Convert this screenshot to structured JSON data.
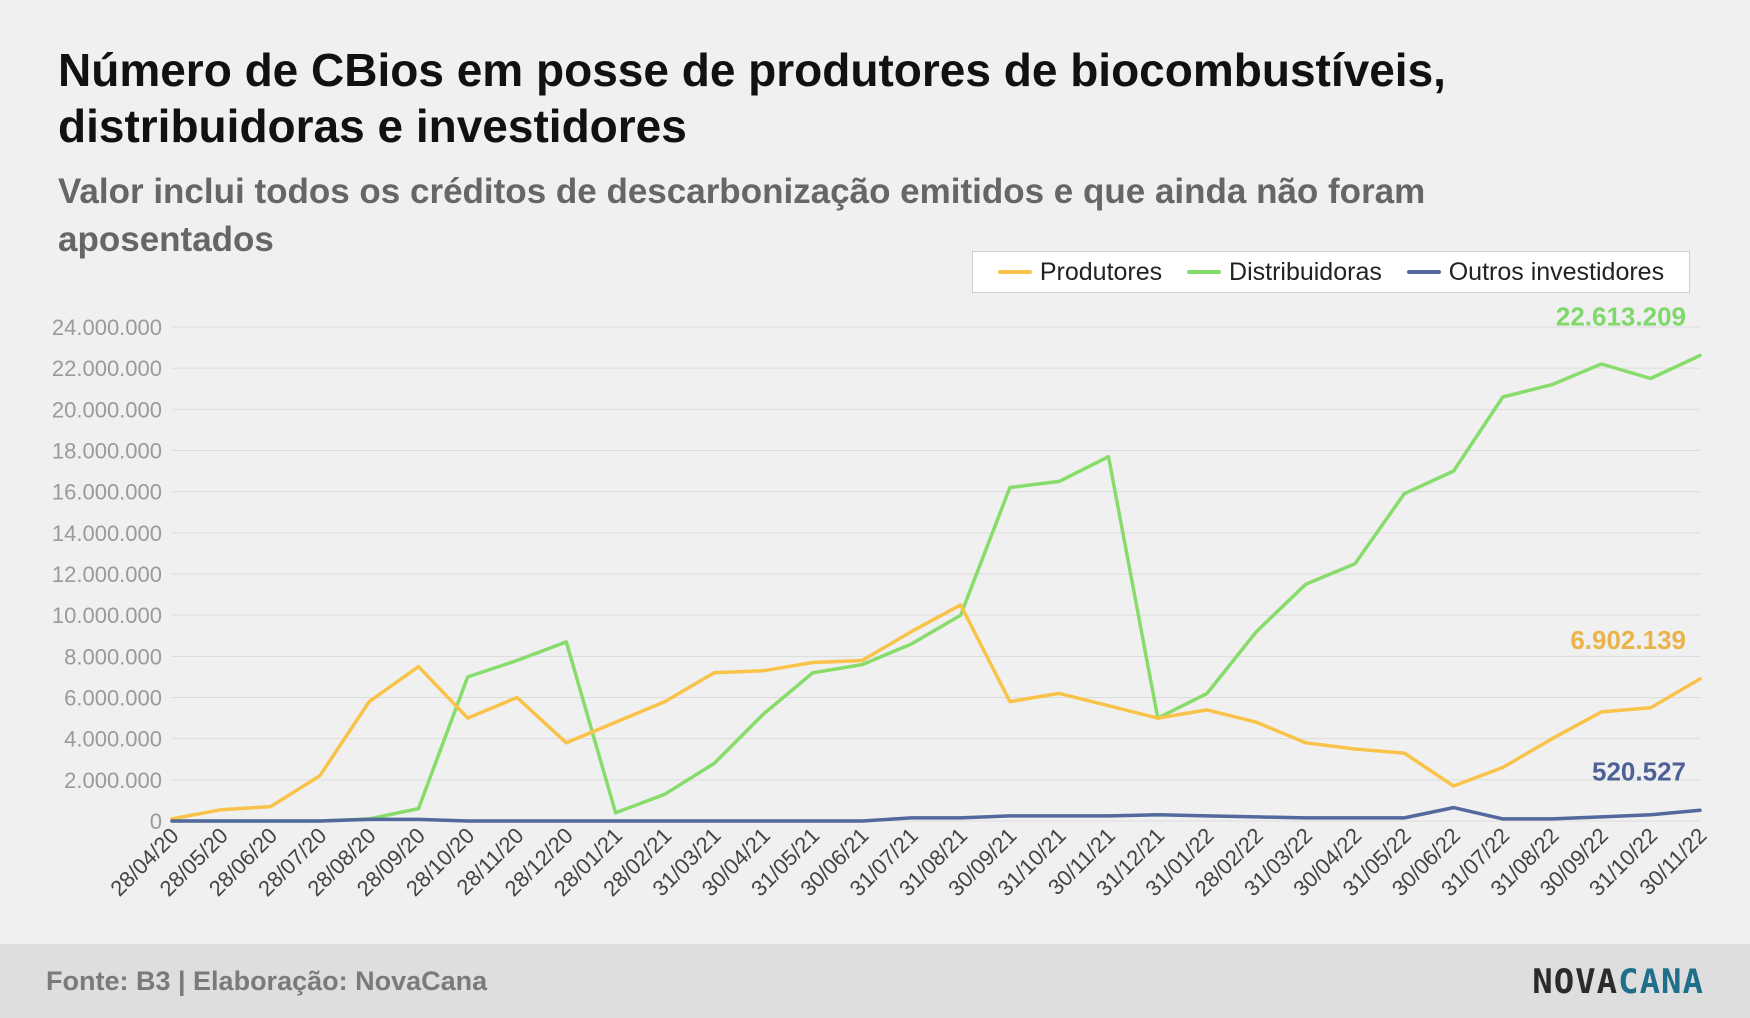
{
  "title": "Número de CBios em posse de produtores de biocombustíveis, distribuidoras e investidores",
  "subtitle": "Valor inclui todos os créditos de descarbonização emitidos e que ainda não foram aposentados",
  "footer": {
    "source": "Fonte: B3 | Elaboração: NovaCana",
    "logo_part1": "NOVA",
    "logo_part2": "CANA"
  },
  "colors": {
    "produtores": "#f9c349",
    "distribuidoras": "#87dc6c",
    "outros": "#53689c",
    "produtores_label": "#eab44b",
    "distribuidoras_label": "#7fd86a",
    "outros_label": "#4e6196",
    "grid": "#dcdcdc",
    "axis_text": "#9a9a9a",
    "xtick_text": "#444444"
  },
  "chart_data": {
    "type": "line",
    "title": "Número de CBios em posse de produtores de biocombustíveis, distribuidoras e investidores",
    "legend_position": "top-right",
    "grid": true,
    "ylim": [
      0,
      24000000
    ],
    "yticks": [
      0,
      2000000,
      4000000,
      6000000,
      8000000,
      10000000,
      12000000,
      14000000,
      16000000,
      18000000,
      20000000,
      22000000,
      24000000
    ],
    "ytick_labels": [
      "0",
      "2.000.000",
      "4.000.000",
      "6.000.000",
      "8.000.000",
      "10.000.000",
      "12.000.000",
      "14.000.000",
      "16.000.000",
      "18.000.000",
      "20.000.000",
      "22.000.000",
      "24.000.000"
    ],
    "x": [
      "28/04/20",
      "28/05/20",
      "28/06/20",
      "28/07/20",
      "28/08/20",
      "28/09/20",
      "28/10/20",
      "28/11/20",
      "28/12/20",
      "28/01/21",
      "28/02/21",
      "31/03/21",
      "30/04/21",
      "31/05/21",
      "30/06/21",
      "31/07/21",
      "31/08/21",
      "30/09/21",
      "31/10/21",
      "30/11/21",
      "31/12/21",
      "31/01/22",
      "28/02/22",
      "31/03/22",
      "30/04/22",
      "31/05/22",
      "30/06/22",
      "31/07/22",
      "31/08/22",
      "30/09/22",
      "31/10/22",
      "30/11/22"
    ],
    "series": [
      {
        "name": "Produtores",
        "color_key": "produtores",
        "values": [
          100000,
          550000,
          700000,
          2200000,
          5800000,
          7500000,
          5000000,
          6000000,
          3800000,
          4800000,
          5800000,
          7200000,
          7300000,
          7700000,
          7800000,
          9200000,
          10500000,
          5800000,
          6200000,
          5600000,
          5000000,
          5400000,
          4800000,
          3800000,
          3500000,
          3300000,
          1700000,
          2600000,
          4000000,
          5300000,
          5500000,
          6902139
        ],
        "end_label": "6.902.139"
      },
      {
        "name": "Distribuidoras",
        "color_key": "distribuidoras",
        "values": [
          0,
          0,
          0,
          0,
          100000,
          600000,
          7000000,
          7800000,
          8700000,
          400000,
          1300000,
          2800000,
          5200000,
          7200000,
          7600000,
          8600000,
          10000000,
          16200000,
          16500000,
          17700000,
          5000000,
          6200000,
          9200000,
          11500000,
          12500000,
          15900000,
          17000000,
          20600000,
          21200000,
          22200000,
          21500000,
          22613209
        ],
        "end_label": "22.613.209"
      },
      {
        "name": "Outros investidores",
        "color_key": "outros",
        "values": [
          0,
          0,
          0,
          0,
          80000,
          80000,
          0,
          0,
          0,
          0,
          0,
          0,
          0,
          0,
          0,
          150000,
          150000,
          250000,
          250000,
          250000,
          300000,
          250000,
          200000,
          150000,
          150000,
          150000,
          650000,
          100000,
          100000,
          200000,
          300000,
          520527
        ],
        "end_label": "520.527"
      }
    ]
  }
}
